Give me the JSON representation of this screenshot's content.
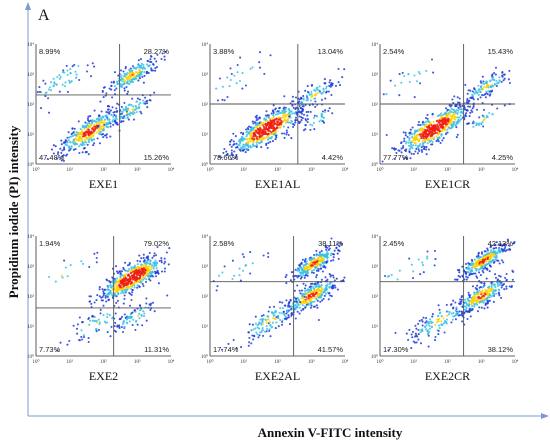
{
  "figure_label": "A",
  "colors": {
    "frame_axis": "#7b9ad0",
    "gate": "#555555",
    "density_low": "#1f3bd6",
    "density_mid": "#39c1e6",
    "density_high": "#ffd000",
    "density_peak": "#ee1e12"
  },
  "icons": [],
  "chart_data": {
    "type": "scatter",
    "title": "",
    "xlabel": "Annexin V-FITC intensity",
    "ylabel": "Propidium iodide (PI) intensity",
    "scale": "log",
    "xlim": [
      1,
      10000
    ],
    "ylim": [
      1,
      10000
    ],
    "tick_labels": [
      "10⁰",
      "10¹",
      "10²",
      "10³",
      "10⁴"
    ],
    "grid": false,
    "legend": "none",
    "panels": [
      {
        "name": "EXE1",
        "gate_x": 300,
        "gate_y": 200,
        "quadrants": {
          "ul": "8.99%",
          "ur": "28.27%",
          "ll": "47.48%",
          "lr": "15.26%"
        },
        "populations": [
          {
            "x": 40,
            "y": 12,
            "spread": 0.4,
            "weight": 0.5
          },
          {
            "x": 700,
            "y": 900,
            "spread": 0.32,
            "weight": 0.28
          },
          {
            "x": 600,
            "y": 60,
            "spread": 0.3,
            "weight": 0.13
          },
          {
            "x": 6,
            "y": 600,
            "spread": 0.45,
            "weight": 0.09
          }
        ]
      },
      {
        "name": "EXE1AL",
        "gate_x": 400,
        "gate_y": 100,
        "quadrants": {
          "ul": "3.88%",
          "ur": "13.04%",
          "ll": "78.66%",
          "lr": "4.42%"
        },
        "populations": [
          {
            "x": 50,
            "y": 15,
            "spread": 0.45,
            "weight": 0.78
          },
          {
            "x": 1200,
            "y": 200,
            "spread": 0.3,
            "weight": 0.13
          },
          {
            "x": 1500,
            "y": 30,
            "spread": 0.25,
            "weight": 0.05
          },
          {
            "x": 6,
            "y": 600,
            "spread": 0.5,
            "weight": 0.04
          }
        ]
      },
      {
        "name": "EXE1CR",
        "gate_x": 300,
        "gate_y": 100,
        "quadrants": {
          "ul": "2.54%",
          "ur": "15.43%",
          "ll": "77.77%",
          "lr": "4.25%"
        },
        "populations": [
          {
            "x": 40,
            "y": 15,
            "spread": 0.45,
            "weight": 0.78
          },
          {
            "x": 1500,
            "y": 400,
            "spread": 0.3,
            "weight": 0.15
          },
          {
            "x": 1200,
            "y": 30,
            "spread": 0.25,
            "weight": 0.04
          },
          {
            "x": 6,
            "y": 600,
            "spread": 0.5,
            "weight": 0.03
          }
        ]
      },
      {
        "name": "EXE2",
        "gate_x": 200,
        "gate_y": 40,
        "quadrants": {
          "ul": "1.94%",
          "ur": "79.02%",
          "ll": "7.73%",
          "lr": "11.31%"
        },
        "populations": [
          {
            "x": 700,
            "y": 400,
            "spread": 0.4,
            "weight": 0.79
          },
          {
            "x": 60,
            "y": 12,
            "spread": 0.4,
            "weight": 0.08
          },
          {
            "x": 900,
            "y": 20,
            "spread": 0.3,
            "weight": 0.11
          },
          {
            "x": 6,
            "y": 500,
            "spread": 0.5,
            "weight": 0.02
          }
        ]
      },
      {
        "name": "EXE2AL",
        "gate_x": 300,
        "gate_y": 300,
        "quadrants": {
          "ul": "2.58%",
          "ur": "38.11%",
          "ll": "17.74%",
          "lr": "41.57%"
        },
        "populations": [
          {
            "x": 1000,
            "y": 100,
            "spread": 0.35,
            "weight": 0.42
          },
          {
            "x": 1200,
            "y": 1200,
            "spread": 0.3,
            "weight": 0.38
          },
          {
            "x": 60,
            "y": 15,
            "spread": 0.4,
            "weight": 0.17
          },
          {
            "x": 6,
            "y": 700,
            "spread": 0.5,
            "weight": 0.03
          }
        ]
      },
      {
        "name": "EXE2CR",
        "gate_x": 300,
        "gate_y": 300,
        "quadrants": {
          "ul": "2.45%",
          "ur": "42.13%",
          "ll": "17.30%",
          "lr": "38.12%"
        },
        "populations": [
          {
            "x": 1000,
            "y": 100,
            "spread": 0.35,
            "weight": 0.38
          },
          {
            "x": 1200,
            "y": 1500,
            "spread": 0.3,
            "weight": 0.42
          },
          {
            "x": 60,
            "y": 15,
            "spread": 0.4,
            "weight": 0.17
          },
          {
            "x": 6,
            "y": 700,
            "spread": 0.5,
            "weight": 0.03
          }
        ]
      }
    ]
  }
}
